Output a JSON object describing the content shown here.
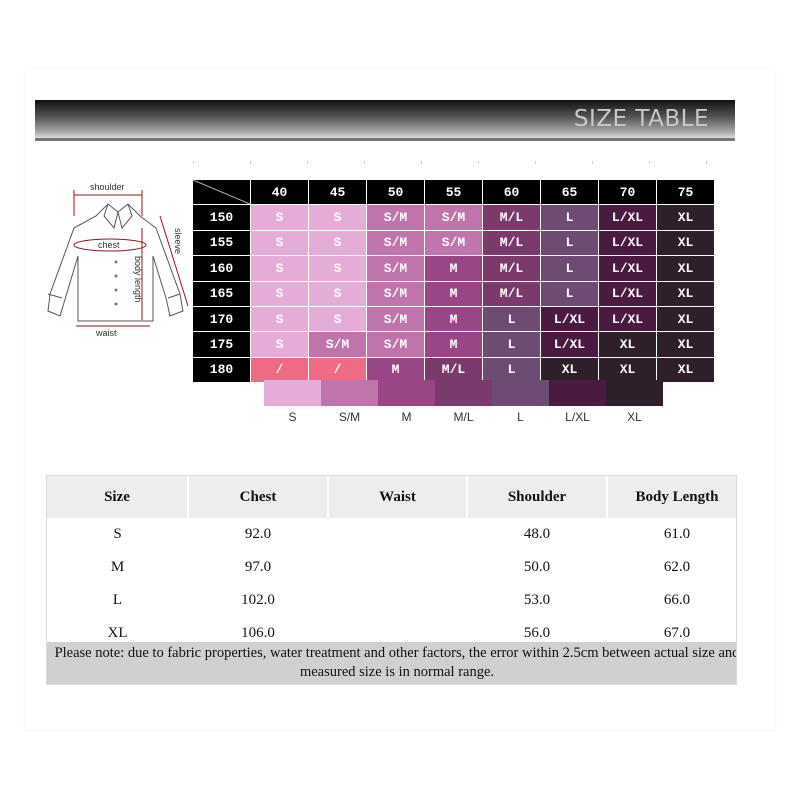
{
  "banner": {
    "title": "SIZE TABLE"
  },
  "diagram": {
    "labels": {
      "shoulder": "shoulder",
      "chest": "chest",
      "sleeve": "sleeve",
      "body_length": "body length",
      "waist": "waist"
    }
  },
  "size_chart": {
    "columns": [
      "40",
      "45",
      "50",
      "55",
      "60",
      "65",
      "70",
      "75"
    ],
    "rows": [
      {
        "label": "150",
        "sizes": [
          "S",
          "S",
          "S/M",
          "S/M",
          "M/L",
          "L",
          "L/XL",
          "XL"
        ]
      },
      {
        "label": "155",
        "sizes": [
          "S",
          "S",
          "S/M",
          "S/M",
          "M/L",
          "L",
          "L/XL",
          "XL"
        ]
      },
      {
        "label": "160",
        "sizes": [
          "S",
          "S",
          "S/M",
          "M",
          "M/L",
          "L",
          "L/XL",
          "XL"
        ]
      },
      {
        "label": "165",
        "sizes": [
          "S",
          "S",
          "S/M",
          "M",
          "M/L",
          "L",
          "L/XL",
          "XL"
        ]
      },
      {
        "label": "170",
        "sizes": [
          "S",
          "S",
          "S/M",
          "M",
          "L",
          "L/XL",
          "L/XL",
          "XL"
        ]
      },
      {
        "label": "175",
        "sizes": [
          "S",
          "S/M",
          "S/M",
          "M",
          "L",
          "L/XL",
          "XL",
          "XL"
        ]
      },
      {
        "label": "180",
        "sizes": [
          "/",
          "/",
          "M",
          "M/L",
          "L",
          "XL",
          "XL",
          "XL"
        ]
      }
    ],
    "colors": {
      "S": "#e4acd6",
      "S/M": "#bf74ab",
      "M": "#9a4585",
      "M/L": "#7a3a6c",
      "L": "#6e4b72",
      "L/XL": "#4a1a40",
      "XL": "#2e1f2b",
      "/": "#ef6b85"
    },
    "legend": [
      "S",
      "S/M",
      "M",
      "M/L",
      "L",
      "L/XL",
      "XL"
    ]
  },
  "measurements": {
    "headers": [
      "Size",
      "Chest",
      "Waist",
      "Shoulder",
      "Body Length"
    ],
    "rows": [
      [
        "S",
        "92.0",
        "",
        "48.0",
        "61.0"
      ],
      [
        "M",
        "97.0",
        "",
        "50.0",
        "62.0"
      ],
      [
        "L",
        "102.0",
        "",
        "53.0",
        "66.0"
      ],
      [
        "XL",
        "106.0",
        "",
        "56.0",
        "67.0"
      ]
    ],
    "note": "Please note: due to fabric properties, water treatment and other factors, the error within 2.5cm between actual size and measured size is in normal range."
  }
}
